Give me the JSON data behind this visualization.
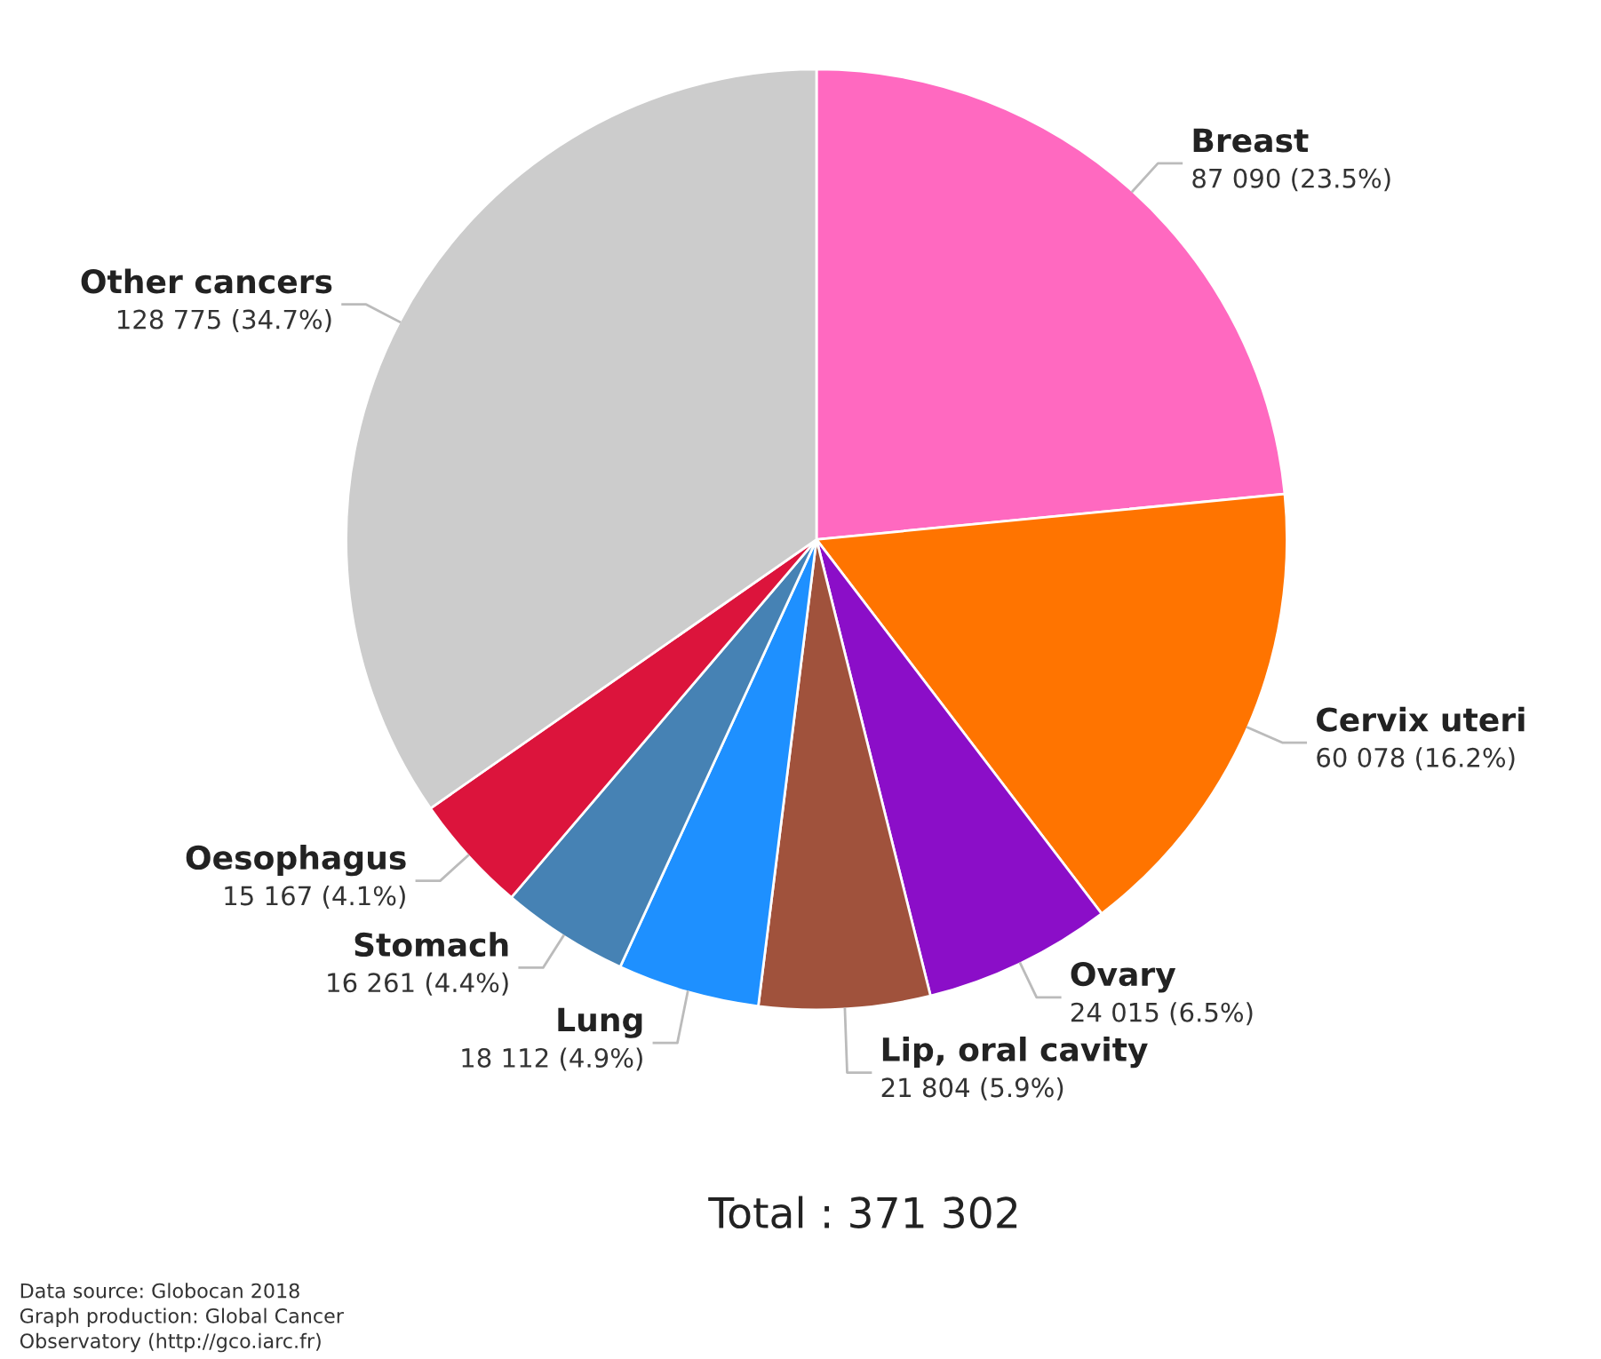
{
  "chart_data": {
    "type": "pie",
    "categories": [
      "Breast",
      "Cervix uteri",
      "Ovary",
      "Lip, oral cavity",
      "Lung",
      "Stomach",
      "Oesophagus",
      "Other cancers"
    ],
    "values": [
      87090,
      60078,
      24015,
      21804,
      18112,
      16261,
      15167,
      128775
    ],
    "colors": [
      "#ff69c0",
      "#ff7400",
      "#8b0ec8",
      "#a0523c",
      "#1e90ff",
      "#4682b4",
      "#dc143c",
      "#cccccc"
    ],
    "value_labels": [
      "87 090 (23.5%)",
      "60 078 (16.2%)",
      "24 015 (6.5%)",
      "21 804 (5.9%)",
      "18 112 (4.9%)",
      "16 261 (4.4%)",
      "15 167 (4.1%)",
      "128 775 (34.7%)"
    ],
    "annotations": [
      "Total : 371 302",
      "Data source: Globocan 2018\nGraph production: Global Cancer\nObservatory (http://gco.iarc.fr)"
    ]
  }
}
